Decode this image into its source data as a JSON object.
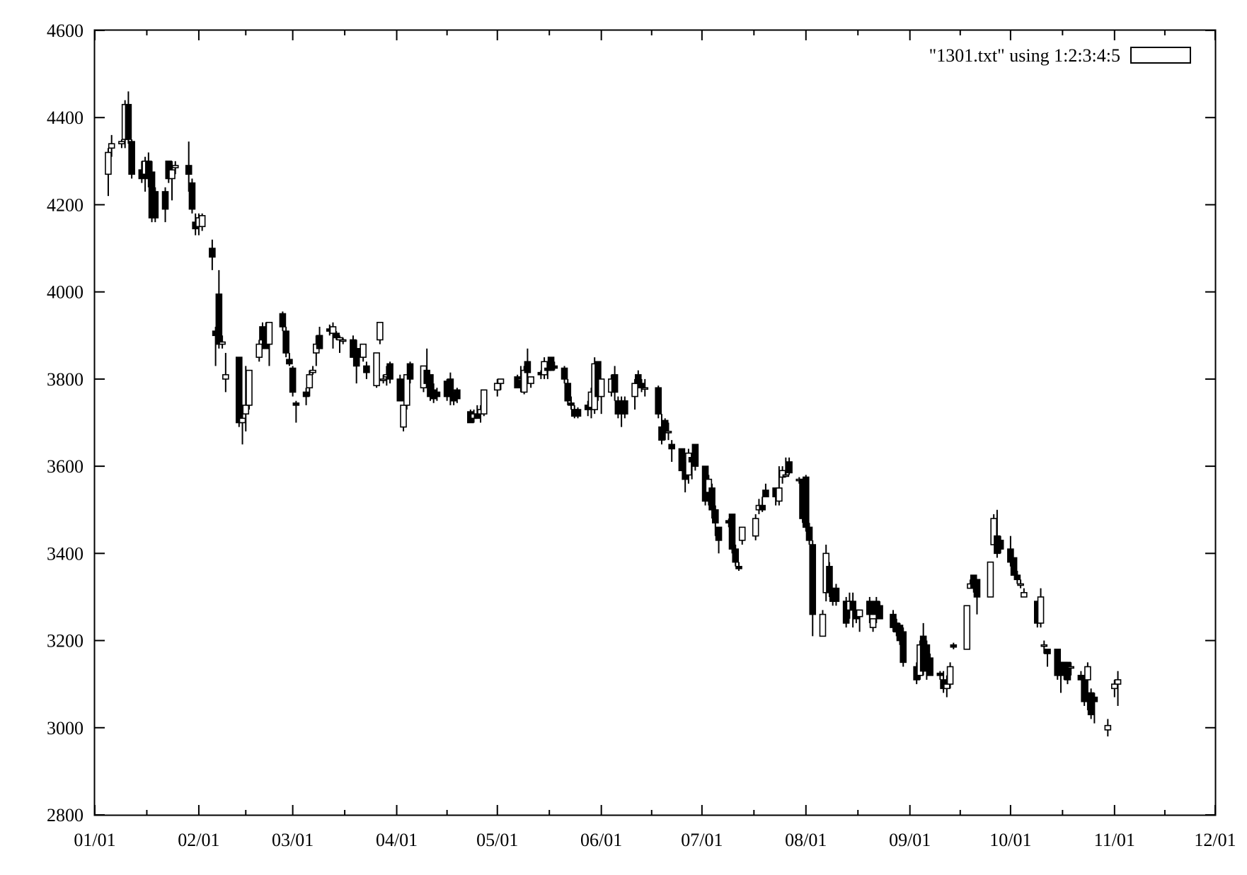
{
  "chart_data": {
    "type": "candlestick",
    "title": "",
    "xlabel": "",
    "ylabel": "",
    "xlim": [
      "01/01",
      "12/01"
    ],
    "ylim": [
      2800,
      4600
    ],
    "y_ticks": [
      2800,
      3000,
      3200,
      3400,
      3600,
      3800,
      4000,
      4200,
      4400,
      4600
    ],
    "x_ticks": [
      "01/01",
      "02/01",
      "03/01",
      "04/01",
      "05/01",
      "06/01",
      "07/01",
      "08/01",
      "09/01",
      "10/01",
      "11/01",
      "12/01"
    ],
    "legend": {
      "label": "\"1301.txt\" using 1:2:3:4:5",
      "position": "top-right"
    },
    "grid": false,
    "columns": [
      "date",
      "open",
      "low",
      "high",
      "close"
    ],
    "candles": [
      [
        "01/05",
        4270,
        4220,
        4330,
        4320
      ],
      [
        "01/06",
        4330,
        4310,
        4360,
        4340
      ],
      [
        "01/09",
        4340,
        4330,
        4350,
        4345
      ],
      [
        "01/10",
        4350,
        4330,
        4440,
        4430
      ],
      [
        "01/11",
        4430,
        4340,
        4460,
        4350
      ],
      [
        "01/12",
        4345,
        4260,
        4350,
        4270
      ],
      [
        "01/15",
        4280,
        4250,
        4300,
        4260
      ],
      [
        "01/16",
        4270,
        4230,
        4310,
        4300
      ],
      [
        "01/17",
        4300,
        4240,
        4320,
        4260
      ],
      [
        "01/18",
        4275,
        4160,
        4300,
        4170
      ],
      [
        "01/19",
        4230,
        4160,
        4240,
        4170
      ],
      [
        "01/22",
        4230,
        4160,
        4240,
        4190
      ],
      [
        "01/23",
        4300,
        4250,
        4300,
        4260
      ],
      [
        "01/24",
        4260,
        4210,
        4300,
        4280
      ],
      [
        "01/25",
        4285,
        4270,
        4300,
        4290
      ],
      [
        "01/29",
        4290,
        4230,
        4345,
        4270
      ],
      [
        "01/30",
        4250,
        4180,
        4260,
        4190
      ],
      [
        "01/31",
        4160,
        4130,
        4180,
        4145
      ],
      [
        "02/01",
        4150,
        4130,
        4180,
        4170
      ],
      [
        "02/02",
        4150,
        4140,
        4180,
        4175
      ],
      [
        "02/05",
        4100,
        4050,
        4120,
        4080
      ],
      [
        "02/06",
        3910,
        3830,
        3920,
        3900
      ],
      [
        "02/07",
        3995,
        3870,
        4050,
        3880
      ],
      [
        "02/08",
        3880,
        3870,
        3900,
        3885
      ],
      [
        "02/09",
        3800,
        3770,
        3860,
        3810
      ],
      [
        "02/13",
        3850,
        3690,
        3850,
        3700
      ],
      [
        "02/14",
        3700,
        3650,
        3720,
        3710
      ],
      [
        "02/15",
        3720,
        3680,
        3830,
        3740
      ],
      [
        "02/16",
        3740,
        3730,
        3820,
        3820
      ],
      [
        "02/19",
        3850,
        3840,
        3890,
        3880
      ],
      [
        "02/20",
        3920,
        3880,
        3930,
        3890
      ],
      [
        "02/21",
        3910,
        3870,
        3930,
        3870
      ],
      [
        "02/22",
        3880,
        3830,
        3930,
        3930
      ],
      [
        "02/26",
        3950,
        3910,
        3955,
        3920
      ],
      [
        "02/27",
        3910,
        3850,
        3920,
        3860
      ],
      [
        "02/28",
        3845,
        3830,
        3860,
        3835
      ],
      [
        "03/01",
        3825,
        3760,
        3830,
        3770
      ],
      [
        "03/02",
        3745,
        3700,
        3750,
        3740
      ],
      [
        "03/05",
        3770,
        3740,
        3780,
        3760
      ],
      [
        "03/06",
        3780,
        3760,
        3820,
        3810
      ],
      [
        "03/07",
        3815,
        3810,
        3830,
        3820
      ],
      [
        "03/08",
        3860,
        3830,
        3900,
        3880
      ],
      [
        "03/09",
        3900,
        3870,
        3920,
        3870
      ],
      [
        "03/12",
        3915,
        3900,
        3925,
        3910
      ],
      [
        "03/13",
        3905,
        3870,
        3930,
        3920
      ],
      [
        "03/14",
        3905,
        3890,
        3910,
        3895
      ],
      [
        "03/15",
        3890,
        3860,
        3900,
        3895
      ],
      [
        "03/16",
        3890,
        3880,
        3895,
        3890
      ],
      [
        "03/19",
        3890,
        3850,
        3900,
        3850
      ],
      [
        "03/20",
        3870,
        3790,
        3890,
        3830
      ],
      [
        "03/22",
        3850,
        3840,
        3880,
        3880
      ],
      [
        "03/23",
        3830,
        3800,
        3840,
        3815
      ],
      [
        "03/26",
        3785,
        3780,
        3860,
        3860
      ],
      [
        "03/27",
        3890,
        3880,
        3930,
        3930
      ],
      [
        "03/28",
        3800,
        3790,
        3810,
        3800
      ],
      [
        "03/29",
        3805,
        3785,
        3830,
        3810
      ],
      [
        "03/30",
        3835,
        3790,
        3840,
        3800
      ],
      [
        "04/02",
        3800,
        3750,
        3810,
        3750
      ],
      [
        "04/03",
        3690,
        3680,
        3740,
        3740
      ],
      [
        "04/04",
        3740,
        3730,
        3810,
        3810
      ],
      [
        "04/05",
        3835,
        3790,
        3840,
        3800
      ],
      [
        "04/09",
        3780,
        3770,
        3830,
        3830
      ],
      [
        "04/10",
        3820,
        3780,
        3870,
        3790
      ],
      [
        "04/11",
        3810,
        3750,
        3810,
        3760
      ],
      [
        "04/12",
        3775,
        3745,
        3790,
        3755
      ],
      [
        "04/13",
        3770,
        3750,
        3780,
        3760
      ],
      [
        "04/16",
        3795,
        3750,
        3800,
        3760
      ],
      [
        "04/17",
        3800,
        3740,
        3815,
        3760
      ],
      [
        "04/18",
        3760,
        3740,
        3770,
        3750
      ],
      [
        "04/19",
        3775,
        3745,
        3780,
        3755
      ],
      [
        "04/23",
        3725,
        3700,
        3730,
        3700
      ],
      [
        "04/24",
        3710,
        3700,
        3730,
        3720
      ],
      [
        "04/25",
        3720,
        3710,
        3740,
        3710
      ],
      [
        "04/26",
        3720,
        3700,
        3740,
        3730
      ],
      [
        "04/27",
        3720,
        3715,
        3775,
        3775
      ],
      [
        "05/01",
        3775,
        3760,
        3800,
        3790
      ],
      [
        "05/02",
        3790,
        3775,
        3800,
        3800
      ],
      [
        "05/07",
        3805,
        3780,
        3810,
        3780
      ],
      [
        "05/08",
        3800,
        3770,
        3830,
        3800
      ],
      [
        "05/09",
        3770,
        3765,
        3830,
        3820
      ],
      [
        "05/10",
        3840,
        3800,
        3870,
        3815
      ],
      [
        "05/11",
        3790,
        3780,
        3805,
        3805
      ],
      [
        "05/14",
        3815,
        3800,
        3820,
        3810
      ],
      [
        "05/15",
        3810,
        3800,
        3850,
        3840
      ],
      [
        "05/16",
        3825,
        3800,
        3840,
        3820
      ],
      [
        "05/17",
        3850,
        3820,
        3850,
        3820
      ],
      [
        "05/18",
        3830,
        3820,
        3840,
        3825
      ],
      [
        "05/21",
        3825,
        3790,
        3830,
        3800
      ],
      [
        "05/22",
        3790,
        3740,
        3800,
        3750
      ],
      [
        "05/23",
        3745,
        3730,
        3760,
        3740
      ],
      [
        "05/24",
        3730,
        3710,
        3740,
        3715
      ],
      [
        "05/25",
        3730,
        3710,
        3735,
        3715
      ],
      [
        "05/28",
        3740,
        3715,
        3750,
        3730
      ],
      [
        "05/29",
        3735,
        3710,
        3780,
        3770
      ],
      [
        "05/30",
        3730,
        3720,
        3850,
        3835
      ],
      [
        "05/31",
        3840,
        3750,
        3840,
        3760
      ],
      [
        "06/01",
        3760,
        3720,
        3800,
        3800
      ],
      [
        "06/04",
        3770,
        3760,
        3810,
        3800
      ],
      [
        "06/05",
        3810,
        3750,
        3830,
        3770
      ],
      [
        "06/06",
        3750,
        3710,
        3760,
        3720
      ],
      [
        "06/07",
        3750,
        3690,
        3760,
        3730
      ],
      [
        "06/08",
        3750,
        3710,
        3760,
        3720
      ],
      [
        "06/11",
        3760,
        3730,
        3800,
        3790
      ],
      [
        "06/12",
        3810,
        3790,
        3820,
        3790
      ],
      [
        "06/13",
        3790,
        3770,
        3800,
        3780
      ],
      [
        "06/14",
        3780,
        3760,
        3800,
        3780
      ],
      [
        "06/18",
        3780,
        3710,
        3785,
        3720
      ],
      [
        "06/19",
        3690,
        3650,
        3720,
        3660
      ],
      [
        "06/20",
        3705,
        3660,
        3710,
        3680
      ],
      [
        "06/21",
        3680,
        3660,
        3700,
        3680
      ],
      [
        "06/22",
        3650,
        3610,
        3660,
        3640
      ],
      [
        "06/25",
        3640,
        3590,
        3640,
        3590
      ],
      [
        "06/26",
        3590,
        3540,
        3610,
        3570
      ],
      [
        "06/27",
        3580,
        3560,
        3640,
        3630
      ],
      [
        "06/28",
        3620,
        3570,
        3630,
        3610
      ],
      [
        "06/29",
        3650,
        3590,
        3650,
        3600
      ],
      [
        "07/02",
        3600,
        3510,
        3600,
        3520
      ],
      [
        "07/03",
        3540,
        3510,
        3580,
        3570
      ],
      [
        "07/04",
        3550,
        3480,
        3560,
        3500
      ],
      [
        "07/05",
        3500,
        3440,
        3510,
        3470
      ],
      [
        "07/06",
        3460,
        3400,
        3460,
        3430
      ],
      [
        "07/09",
        3475,
        3460,
        3480,
        3470
      ],
      [
        "07/10",
        3490,
        3400,
        3490,
        3410
      ],
      [
        "07/11",
        3410,
        3370,
        3420,
        3380
      ],
      [
        "07/12",
        3370,
        3360,
        3380,
        3365
      ],
      [
        "07/13",
        3430,
        3420,
        3460,
        3460
      ],
      [
        "07/17",
        3440,
        3430,
        3490,
        3480
      ],
      [
        "07/18",
        3500,
        3490,
        3525,
        3510
      ],
      [
        "07/19",
        3510,
        3495,
        3530,
        3500
      ],
      [
        "07/20",
        3545,
        3530,
        3560,
        3530
      ],
      [
        "07/23",
        3550,
        3510,
        3550,
        3530
      ],
      [
        "07/24",
        3520,
        3510,
        3600,
        3550
      ],
      [
        "07/25",
        3575,
        3560,
        3600,
        3590
      ],
      [
        "07/26",
        3580,
        3575,
        3620,
        3580
      ],
      [
        "07/27",
        3610,
        3580,
        3620,
        3585
      ],
      [
        "07/30",
        3570,
        3560,
        3575,
        3570
      ],
      [
        "07/31",
        3570,
        3470,
        3570,
        3480
      ],
      [
        "08/01",
        3575,
        3450,
        3580,
        3460
      ],
      [
        "08/02",
        3460,
        3420,
        3470,
        3430
      ],
      [
        "08/03",
        3420,
        3210,
        3430,
        3260
      ],
      [
        "08/06",
        3210,
        3210,
        3270,
        3260
      ],
      [
        "08/07",
        3310,
        3290,
        3420,
        3400
      ],
      [
        "08/08",
        3370,
        3300,
        3380,
        3310
      ],
      [
        "08/09",
        3320,
        3280,
        3320,
        3290
      ],
      [
        "08/10",
        3320,
        3280,
        3330,
        3290
      ],
      [
        "08/13",
        3290,
        3230,
        3300,
        3240
      ],
      [
        "08/14",
        3270,
        3250,
        3310,
        3290
      ],
      [
        "08/15",
        3290,
        3230,
        3310,
        3270
      ],
      [
        "08/16",
        3270,
        3240,
        3270,
        3250
      ],
      [
        "08/17",
        3255,
        3220,
        3270,
        3270
      ],
      [
        "08/20",
        3290,
        3240,
        3300,
        3260
      ],
      [
        "08/21",
        3230,
        3220,
        3250,
        3250
      ],
      [
        "08/22",
        3290,
        3240,
        3300,
        3260
      ],
      [
        "08/23",
        3280,
        3250,
        3290,
        3250
      ],
      [
        "08/27",
        3260,
        3220,
        3270,
        3230
      ],
      [
        "08/28",
        3240,
        3210,
        3250,
        3220
      ],
      [
        "08/29",
        3235,
        3190,
        3240,
        3200
      ],
      [
        "08/30",
        3220,
        3140,
        3230,
        3150
      ],
      [
        "09/03",
        3140,
        3100,
        3150,
        3110
      ],
      [
        "09/04",
        3120,
        3110,
        3200,
        3190
      ],
      [
        "09/05",
        3210,
        3120,
        3240,
        3130
      ],
      [
        "09/06",
        3190,
        3110,
        3200,
        3130
      ],
      [
        "09/07",
        3160,
        3120,
        3170,
        3120
      ],
      [
        "09/10",
        3125,
        3110,
        3130,
        3120
      ],
      [
        "09/11",
        3110,
        3080,
        3130,
        3090
      ],
      [
        "09/12",
        3090,
        3070,
        3120,
        3100
      ],
      [
        "09/13",
        3100,
        3090,
        3150,
        3140
      ],
      [
        "09/14",
        3190,
        3180,
        3195,
        3185
      ],
      [
        "09/18",
        3180,
        3180,
        3280,
        3280
      ],
      [
        "09/19",
        3320,
        3320,
        3340,
        3330
      ],
      [
        "09/20",
        3350,
        3310,
        3350,
        3320
      ],
      [
        "09/21",
        3340,
        3260,
        3340,
        3300
      ],
      [
        "09/25",
        3300,
        3300,
        3380,
        3380
      ],
      [
        "09/26",
        3420,
        3420,
        3490,
        3480
      ],
      [
        "09/27",
        3440,
        3390,
        3500,
        3400
      ],
      [
        "09/28",
        3430,
        3400,
        3440,
        3410
      ],
      [
        "10/01",
        3410,
        3370,
        3440,
        3380
      ],
      [
        "10/02",
        3390,
        3350,
        3390,
        3350
      ],
      [
        "10/03",
        3350,
        3330,
        3360,
        3340
      ],
      [
        "10/04",
        3330,
        3320,
        3340,
        3330
      ],
      [
        "10/05",
        3300,
        3300,
        3320,
        3310
      ],
      [
        "10/09",
        3290,
        3230,
        3290,
        3240
      ],
      [
        "10/10",
        3240,
        3230,
        3320,
        3300
      ],
      [
        "10/11",
        3190,
        3170,
        3200,
        3190
      ],
      [
        "10/12",
        3180,
        3140,
        3180,
        3170
      ],
      [
        "10/15",
        3180,
        3110,
        3180,
        3120
      ],
      [
        "10/16",
        3150,
        3080,
        3150,
        3120
      ],
      [
        "10/17",
        3150,
        3110,
        3150,
        3130
      ],
      [
        "10/18",
        3150,
        3100,
        3150,
        3110
      ],
      [
        "10/19",
        3140,
        3120,
        3150,
        3140
      ],
      [
        "10/22",
        3120,
        3110,
        3130,
        3110
      ],
      [
        "10/23",
        3120,
        3050,
        3120,
        3060
      ],
      [
        "10/24",
        3110,
        3040,
        3150,
        3140
      ],
      [
        "10/25",
        3080,
        3020,
        3090,
        3030
      ],
      [
        "10/26",
        3070,
        3010,
        3080,
        3060
      ],
      [
        "10/30",
        2995,
        2980,
        3020,
        3005
      ],
      [
        "11/01",
        3090,
        3070,
        3110,
        3100
      ],
      [
        "11/02",
        3100,
        3050,
        3130,
        3110
      ]
    ]
  }
}
